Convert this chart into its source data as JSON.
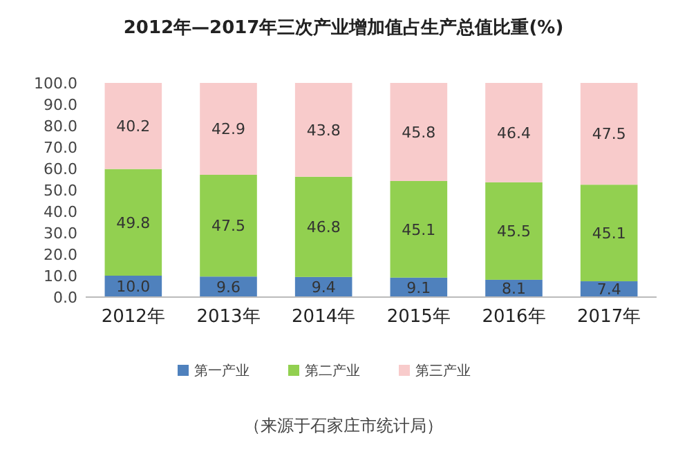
{
  "chart_data": {
    "type": "bar",
    "stacked": true,
    "title": "2012年—2017年三次产业增加值占生产总值比重(%)",
    "categories": [
      "2012年",
      "2013年",
      "2014年",
      "2015年",
      "2016年",
      "2017年"
    ],
    "series": [
      {
        "name": "第一产业",
        "color": "#4f81bd",
        "values": [
          10.0,
          9.6,
          9.4,
          9.1,
          8.1,
          7.4
        ],
        "value_labels": [
          "10.0",
          "9.6",
          "9.4",
          "9.1",
          "8.1",
          "7.4"
        ]
      },
      {
        "name": "第二产业",
        "color": "#92d050",
        "values": [
          49.8,
          47.5,
          46.8,
          45.1,
          45.5,
          45.1
        ],
        "value_labels": [
          "49.8",
          "47.5",
          "46.8",
          "45.1",
          "45.5",
          "45.1"
        ]
      },
      {
        "name": "第三产业",
        "color": "#f8cbcb",
        "values": [
          40.2,
          42.9,
          43.8,
          45.8,
          46.4,
          47.5
        ],
        "value_labels": [
          "40.2",
          "42.9",
          "43.8",
          "45.8",
          "46.4",
          "47.5"
        ]
      }
    ],
    "ylim": [
      0,
      100
    ],
    "yticks": [
      {
        "value": 0,
        "label": "0.0"
      },
      {
        "value": 10,
        "label": "10.0"
      },
      {
        "value": 20,
        "label": "20.0"
      },
      {
        "value": 30,
        "label": "30.0"
      },
      {
        "value": 40,
        "label": "40.0"
      },
      {
        "value": 50,
        "label": "50.0"
      },
      {
        "value": 60,
        "label": "60.0"
      },
      {
        "value": 70,
        "label": "70.0"
      },
      {
        "value": 80,
        "label": "80.0"
      },
      {
        "value": 90,
        "label": "90.0"
      },
      {
        "value": 100,
        "label": "100.0"
      }
    ],
    "legend": "bottom",
    "annotations": [
      "（来源于石家庄市统计局）"
    ]
  }
}
